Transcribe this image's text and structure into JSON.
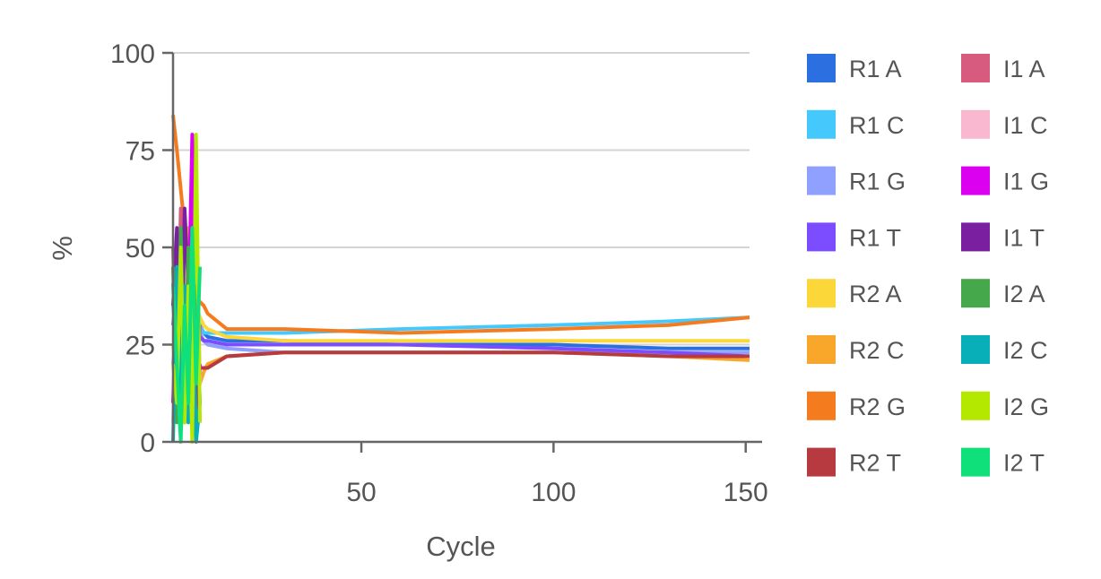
{
  "chart_data": {
    "type": "line",
    "xlabel": "Cycle",
    "ylabel": "%",
    "xlim": [
      1,
      151
    ],
    "ylim": [
      0,
      100
    ],
    "xticks": [
      50,
      100,
      150
    ],
    "yticks": [
      0,
      25,
      50,
      75,
      100
    ],
    "grid": "horizontal",
    "legend": "right",
    "series": [
      {
        "name": "R1 A",
        "color": "#2b6fe0",
        "x": [
          1,
          2,
          3,
          4,
          5,
          6,
          7,
          8,
          9,
          10,
          15,
          30,
          60,
          100,
          130,
          151
        ],
        "y": [
          40,
          50,
          30,
          45,
          20,
          35,
          25,
          30,
          28,
          27,
          26,
          26,
          25,
          25,
          24,
          24
        ]
      },
      {
        "name": "R1 C",
        "color": "#45c8fb",
        "x": [
          1,
          2,
          3,
          4,
          5,
          6,
          7,
          8,
          9,
          10,
          15,
          30,
          60,
          100,
          130,
          151
        ],
        "y": [
          35,
          25,
          45,
          30,
          40,
          25,
          35,
          30,
          28,
          28,
          28,
          28,
          29,
          30,
          31,
          32
        ]
      },
      {
        "name": "R1 G",
        "color": "#8fa0ff",
        "x": [
          1,
          2,
          3,
          4,
          5,
          6,
          7,
          8,
          9,
          10,
          15,
          30,
          60,
          100,
          130,
          151
        ],
        "y": [
          20,
          30,
          25,
          35,
          30,
          40,
          25,
          28,
          26,
          25,
          24,
          23,
          23,
          23,
          23,
          23
        ]
      },
      {
        "name": "R1 T",
        "color": "#7b4dff",
        "x": [
          1,
          2,
          3,
          4,
          5,
          6,
          7,
          8,
          9,
          10,
          15,
          30,
          60,
          100,
          130,
          151
        ],
        "y": [
          30,
          40,
          35,
          20,
          30,
          25,
          30,
          27,
          26,
          26,
          25,
          25,
          25,
          24,
          23,
          22
        ]
      },
      {
        "name": "R2 A",
        "color": "#fcd73a",
        "x": [
          1,
          2,
          3,
          4,
          5,
          6,
          7,
          8,
          9,
          10,
          15,
          30,
          60,
          100,
          130,
          151
        ],
        "y": [
          25,
          15,
          40,
          20,
          45,
          30,
          35,
          32,
          30,
          29,
          27,
          26,
          26,
          26,
          26,
          26
        ]
      },
      {
        "name": "R2 C",
        "color": "#f9a72b",
        "x": [
          1,
          2,
          3,
          4,
          5,
          6,
          7,
          8,
          9,
          10,
          15,
          30,
          60,
          100,
          130,
          151
        ],
        "y": [
          45,
          20,
          50,
          15,
          55,
          10,
          66,
          15,
          18,
          20,
          22,
          23,
          23,
          23,
          22,
          21
        ]
      },
      {
        "name": "R2 G",
        "color": "#f57b1f",
        "x": [
          1,
          2,
          3,
          4,
          5,
          6,
          7,
          8,
          9,
          10,
          15,
          30,
          60,
          100,
          130,
          151
        ],
        "y": [
          84,
          75,
          65,
          55,
          45,
          40,
          37,
          36,
          35,
          33,
          29,
          29,
          28,
          29,
          30,
          32
        ]
      },
      {
        "name": "R2 T",
        "color": "#b63a40",
        "x": [
          1,
          2,
          3,
          4,
          5,
          6,
          7,
          8,
          9,
          10,
          15,
          30,
          60,
          100,
          130,
          151
        ],
        "y": [
          10,
          20,
          15,
          25,
          20,
          18,
          20,
          19,
          19,
          19,
          22,
          23,
          23,
          23,
          22,
          22
        ]
      },
      {
        "name": "I1 A",
        "color": "#d65b7e",
        "x": [
          1,
          2,
          3,
          4,
          5,
          6,
          7,
          8
        ],
        "y": [
          50,
          10,
          60,
          20,
          5,
          40,
          10,
          30
        ]
      },
      {
        "name": "I1 C",
        "color": "#f9b8cf",
        "x": [
          1,
          2,
          3,
          4,
          5,
          6,
          7,
          8
        ],
        "y": [
          5,
          30,
          10,
          45,
          20,
          5,
          50,
          15
        ]
      },
      {
        "name": "I1 G",
        "color": "#dc00f0",
        "x": [
          1,
          2,
          3,
          4,
          5,
          6,
          7,
          8
        ],
        "y": [
          10,
          40,
          20,
          5,
          30,
          79,
          5,
          20
        ]
      },
      {
        "name": "I1 T",
        "color": "#7a1fa0",
        "x": [
          1,
          2,
          3,
          4,
          5,
          6,
          7,
          8
        ],
        "y": [
          35,
          55,
          5,
          60,
          40,
          10,
          30,
          5
        ]
      },
      {
        "name": "I2 A",
        "color": "#45a94c",
        "x": [
          1,
          2,
          3,
          4,
          5,
          6,
          7,
          8
        ],
        "y": [
          45,
          5,
          55,
          10,
          50,
          20,
          40,
          10
        ]
      },
      {
        "name": "I2 C",
        "color": "#08aeb8",
        "x": [
          1,
          2,
          3,
          4,
          5,
          6,
          7,
          8
        ],
        "y": [
          0,
          45,
          10,
          40,
          5,
          45,
          0,
          10
        ]
      },
      {
        "name": "I2 G",
        "color": "#b5e800",
        "x": [
          1,
          2,
          3,
          4,
          5,
          6,
          7,
          8
        ],
        "y": [
          20,
          10,
          50,
          5,
          40,
          0,
          79,
          5
        ]
      },
      {
        "name": "I2 T",
        "color": "#10e07a",
        "x": [
          1,
          2,
          3,
          4,
          5,
          6,
          7,
          8
        ],
        "y": [
          40,
          20,
          0,
          35,
          10,
          55,
          15,
          45
        ]
      }
    ]
  }
}
